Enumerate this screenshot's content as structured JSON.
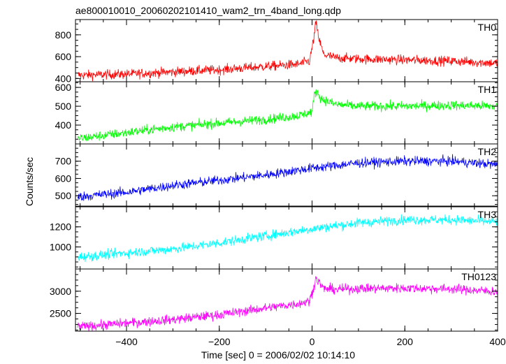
{
  "title": "ae800010010_20060202101410_wam2_trn_4band_long.qdp",
  "ylabel": "Counts/sec",
  "xlabel": "Time [sec] 0 = 2006/02/02 10:14:10",
  "chart_data": {
    "type": "line",
    "x_range": [
      -510,
      400
    ],
    "x_ticks": [
      -400,
      -200,
      0,
      200,
      400
    ],
    "title": "ae800010010_20060202101410_wam2_trn_4band_long.qdp",
    "xlabel": "Time [sec] 0 = 2006/02/02 10:14:10",
    "ylabel": "Counts/sec",
    "panels": [
      {
        "name": "TH0",
        "color": "#ff0000",
        "ylim": [
          370,
          940
        ],
        "yticks": [
          400,
          600,
          800
        ],
        "x": [
          -500,
          -400,
          -300,
          -200,
          -100,
          -30,
          -5,
          5,
          8,
          15,
          25,
          50,
          100,
          200,
          300,
          400
        ],
        "y": [
          430,
          440,
          460,
          480,
          510,
          530,
          560,
          800,
          920,
          760,
          620,
          590,
          580,
          570,
          560,
          540
        ]
      },
      {
        "name": "TH1",
        "color": "#00ff00",
        "ylim": [
          300,
          630
        ],
        "yticks": [
          400,
          500,
          600
        ],
        "x": [
          -500,
          -400,
          -300,
          -200,
          -100,
          -30,
          0,
          5,
          10,
          20,
          50,
          100,
          200,
          300,
          400
        ],
        "y": [
          330,
          360,
          390,
          410,
          430,
          450,
          470,
          560,
          580,
          540,
          510,
          500,
          500,
          505,
          500
        ]
      },
      {
        "name": "TH2",
        "color": "#0000ff",
        "ylim": [
          440,
          800
        ],
        "yticks": [
          500,
          600,
          700
        ],
        "x": [
          -500,
          -400,
          -300,
          -200,
          -100,
          0,
          100,
          200,
          300,
          400
        ],
        "y": [
          495,
          520,
          560,
          590,
          620,
          660,
          690,
          700,
          700,
          680
        ]
      },
      {
        "name": "TH3",
        "color": "#00ffff",
        "ylim": [
          780,
          1400
        ],
        "yticks": [
          1000,
          1200
        ],
        "x": [
          -500,
          -400,
          -300,
          -200,
          -100,
          0,
          100,
          200,
          300,
          400
        ],
        "y": [
          900,
          940,
          980,
          1040,
          1110,
          1180,
          1240,
          1270,
          1270,
          1250
        ]
      },
      {
        "name": "TH0123",
        "color": "#ff00ff",
        "ylim": [
          2100,
          3500
        ],
        "yticks": [
          2500,
          3000
        ],
        "x": [
          -500,
          -400,
          -300,
          -200,
          -100,
          -30,
          -5,
          5,
          8,
          15,
          25,
          50,
          100,
          200,
          300,
          400
        ],
        "y": [
          2200,
          2280,
          2360,
          2470,
          2620,
          2720,
          2780,
          3150,
          3300,
          3200,
          3060,
          3040,
          3060,
          3070,
          3050,
          2990
        ]
      }
    ]
  }
}
